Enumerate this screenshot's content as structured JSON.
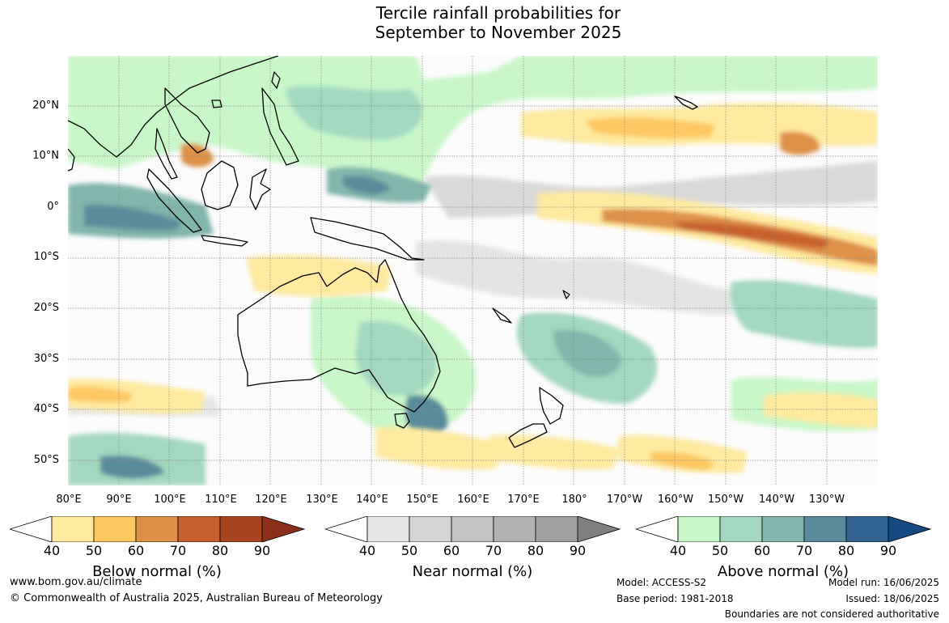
{
  "title": {
    "line1": "Tercile rainfall probabilities for",
    "line2": "September to November 2025"
  },
  "map": {
    "region": "Australia and western Pacific",
    "lat_labels": [
      "20°N",
      "10°N",
      "0°",
      "10°S",
      "20°S",
      "30°S",
      "40°S",
      "50°S"
    ],
    "lon_labels": [
      "80°E",
      "90°E",
      "100°E",
      "110°E",
      "120°E",
      "130°E",
      "140°E",
      "150°E",
      "160°E",
      "170°E",
      "180°",
      "170°W",
      "160°W",
      "150°W",
      "140°W",
      "130°W"
    ]
  },
  "legends": [
    {
      "title": "Below normal (%)",
      "ticks": [
        "40",
        "50",
        "60",
        "70",
        "80",
        "90"
      ],
      "colors": [
        "#ffffff",
        "#ffeaa0",
        "#fdc862",
        "#dd9148",
        "#c8602e",
        "#a84420",
        "#8b3018"
      ]
    },
    {
      "title": "Near normal (%)",
      "ticks": [
        "40",
        "50",
        "60",
        "70",
        "80",
        "90"
      ],
      "colors": [
        "#ffffff",
        "#e6e6e6",
        "#d5d5d5",
        "#c3c3c3",
        "#b2b2b2",
        "#a1a1a1",
        "#7f7f7f"
      ]
    },
    {
      "title": "Above normal (%)",
      "ticks": [
        "40",
        "50",
        "60",
        "70",
        "80",
        "90"
      ],
      "colors": [
        "#ffffff",
        "#c8f8c8",
        "#a3d8c0",
        "#80b6ac",
        "#588c9c",
        "#336391",
        "#154a80"
      ]
    }
  ],
  "footer": {
    "website": "www.bom.gov.au/climate",
    "copyright": "© Commonwealth of Australia 2025, Australian Bureau of Meteorology",
    "model": "Model: ACCESS-S2",
    "base_period": "Base period: 1981-2018",
    "model_run": "Model run: 16/06/2025",
    "issued": "Issued: 18/06/2025",
    "disclaimer": "Boundaries are not considered authoritative"
  }
}
